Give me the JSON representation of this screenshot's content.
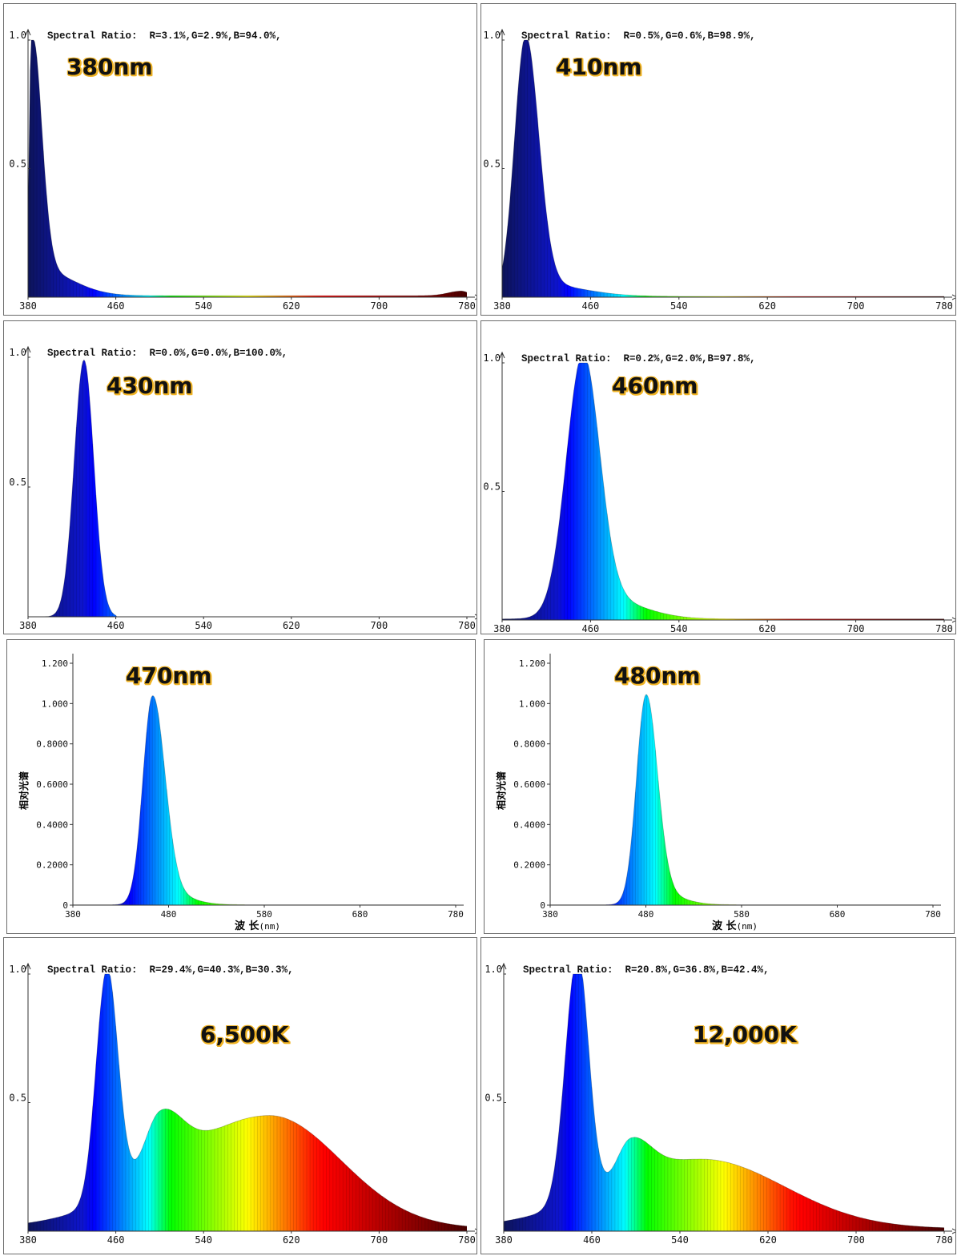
{
  "chart_data": [
    {
      "id": "p380",
      "type": "area",
      "style": "A",
      "label": "380nm",
      "spectral_ratio_label": "Spectral Ratio:",
      "spectral_ratio_value": "R=3.1%,G=2.9%,B=94.0%,",
      "xlim": [
        380,
        780
      ],
      "ylim": [
        0,
        1.0
      ],
      "x_ticks": [
        "380",
        "460",
        "540",
        "620",
        "700",
        "780"
      ],
      "y_ticks": [
        "0.5",
        "1.0"
      ],
      "peaks": [
        {
          "center": 383,
          "amp": 0.98,
          "sl": 2,
          "sr": 9
        },
        {
          "center": 390,
          "amp": 0.1,
          "sl": 4,
          "sr": 30
        },
        {
          "center": 775,
          "amp": 0.018,
          "sl": 12,
          "sr": 6
        }
      ],
      "floor": 0.006
    },
    {
      "id": "p410",
      "type": "area",
      "style": "A",
      "label": "410nm",
      "spectral_ratio_label": "Spectral Ratio:",
      "spectral_ratio_value": "R=0.5%,G=0.6%,B=98.9%,",
      "xlim": [
        380,
        780
      ],
      "ylim": [
        0,
        1.0
      ],
      "x_ticks": [
        "380",
        "460",
        "540",
        "620",
        "700",
        "780"
      ],
      "y_ticks": [
        "0.5",
        "1.0"
      ],
      "peaks": [
        {
          "center": 401,
          "amp": 0.98,
          "sl": 10,
          "sr": 12
        },
        {
          "center": 410,
          "amp": 0.05,
          "sl": 10,
          "sr": 40
        }
      ],
      "floor": 0.003
    },
    {
      "id": "p430",
      "type": "area",
      "style": "A",
      "label": "430nm",
      "spectral_ratio_label": "Spectral Ratio:",
      "spectral_ratio_value": "R=0.0%,G=0.0%,B=100.0%,",
      "xlim": [
        380,
        780
      ],
      "ylim": [
        0,
        1.0
      ],
      "x_ticks": [
        "380",
        "460",
        "540",
        "620",
        "700",
        "780"
      ],
      "y_ticks": [
        "0.5",
        "1.0"
      ],
      "peaks": [
        {
          "center": 431,
          "amp": 0.99,
          "sl": 9,
          "sr": 9
        }
      ],
      "floor": 0,
      "cut": [
        395,
        460
      ]
    },
    {
      "id": "p460",
      "type": "area",
      "style": "A",
      "label": "460nm",
      "spectral_ratio_label": "Spectral Ratio:",
      "spectral_ratio_value": "R=0.2%,G=2.0%,B=97.8%,",
      "xlim": [
        380,
        780
      ],
      "ylim": [
        0,
        1.0
      ],
      "x_ticks": [
        "380",
        "460",
        "540",
        "620",
        "700",
        "780"
      ],
      "y_ticks": [
        "0.5",
        "1.0"
      ],
      "peaks": [
        {
          "center": 453,
          "amp": 0.97,
          "sl": 15,
          "sr": 15
        },
        {
          "center": 470,
          "amp": 0.08,
          "sl": 25,
          "sr": 35
        }
      ],
      "floor": 0.004
    },
    {
      "id": "p470",
      "type": "area",
      "style": "B",
      "label": "470nm",
      "xlabel": "波 长",
      "xlabel_unit": "(nm)",
      "ylabel": "相对光谱",
      "xlim": [
        380,
        780
      ],
      "ylim": [
        0,
        1.2
      ],
      "x_ticks": [
        "380",
        "480",
        "580",
        "680",
        "780"
      ],
      "y_ticks": [
        "0",
        "0.2000",
        "0.4000",
        "0.6000",
        "0.8000",
        "1.000",
        "1.200"
      ],
      "peaks": [
        {
          "center": 463,
          "amp": 1.0,
          "sl": 10,
          "sr": 13
        },
        {
          "center": 475,
          "amp": 0.06,
          "sl": 12,
          "sr": 25
        }
      ],
      "floor": 0.002
    },
    {
      "id": "p480",
      "type": "area",
      "style": "B",
      "label": "480nm",
      "xlabel": "波 长",
      "xlabel_unit": "(nm)",
      "ylabel": "相对光谱",
      "xlim": [
        380,
        780
      ],
      "ylim": [
        0,
        1.2
      ],
      "x_ticks": [
        "380",
        "480",
        "580",
        "680",
        "780"
      ],
      "y_ticks": [
        "0",
        "0.2000",
        "0.4000",
        "0.6000",
        "0.8000",
        "1.000",
        "1.200"
      ],
      "peaks": [
        {
          "center": 480,
          "amp": 1.0,
          "sl": 10,
          "sr": 12
        },
        {
          "center": 490,
          "amp": 0.06,
          "sl": 12,
          "sr": 25
        }
      ],
      "floor": 0.002
    },
    {
      "id": "p6500",
      "type": "area",
      "style": "A",
      "label": "6,500K",
      "spectral_ratio_label": "Spectral Ratio:",
      "spectral_ratio_value": "R=29.4%,G=40.3%,B=30.3%,",
      "xlim": [
        380,
        780
      ],
      "ylim": [
        0,
        1.0
      ],
      "x_ticks": [
        "380",
        "460",
        "540",
        "620",
        "700",
        "780"
      ],
      "y_ticks": [
        "0.5",
        "1.0"
      ],
      "peaks": [
        {
          "center": 452,
          "amp": 0.9,
          "sl": 10,
          "sr": 10
        },
        {
          "center": 500,
          "amp": 0.22,
          "sl": 14,
          "sr": 20
        },
        {
          "center": 600,
          "amp": 0.44,
          "sl": 90,
          "sr": 65
        }
      ],
      "floor": 0.01
    },
    {
      "id": "p12000",
      "type": "area",
      "style": "A",
      "label": "12,000K",
      "spectral_ratio_label": "Spectral Ratio:",
      "spectral_ratio_value": "R=20.8%,G=36.8%,B=42.4%,",
      "xlim": [
        380,
        780
      ],
      "ylim": [
        0,
        1.0
      ],
      "x_ticks": [
        "380",
        "460",
        "540",
        "620",
        "700",
        "780"
      ],
      "y_ticks": [
        "0.5",
        "1.0"
      ],
      "peaks": [
        {
          "center": 447,
          "amp": 0.96,
          "sl": 11,
          "sr": 10
        },
        {
          "center": 495,
          "amp": 0.15,
          "sl": 12,
          "sr": 18
        },
        {
          "center": 560,
          "amp": 0.27,
          "sl": 85,
          "sr": 75
        }
      ],
      "floor": 0.01
    }
  ]
}
